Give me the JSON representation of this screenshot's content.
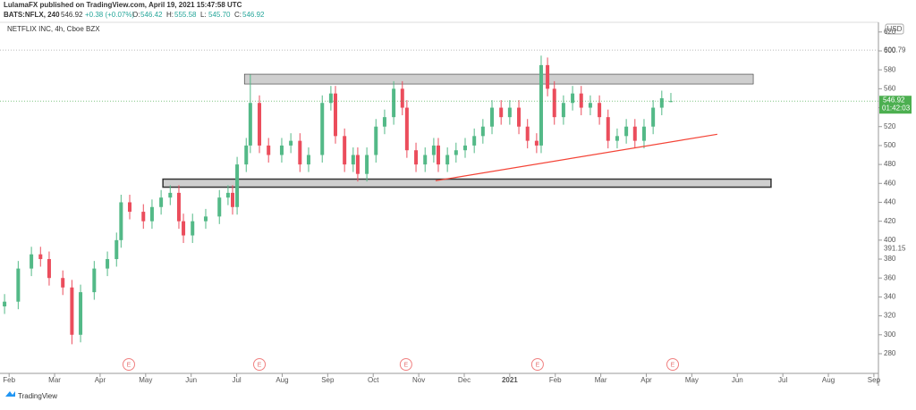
{
  "header": {
    "publisher": "LulamaFX published on TradingView.com, April 19, 2021 15:47:58 UTC",
    "symbol": "BATS:NFLX, 240",
    "last": "546.92",
    "change": "+0.38 (+0.07%)",
    "ohlc": [
      {
        "label": "O:",
        "value": "546.42"
      },
      {
        "label": "H:",
        "value": "555.58"
      },
      {
        "label": "L:",
        "value": "545.70"
      },
      {
        "label": "C:",
        "value": "546.92"
      }
    ]
  },
  "footer": {
    "brand": "TradingView"
  },
  "chart_data": {
    "type": "candlestick",
    "legend_title": "NETFLIX INC, 4h, Cboe BZX",
    "currency": "USD",
    "up_color": "#53b987",
    "down_color": "#eb4d5c",
    "x": [
      -0.1,
      0.2,
      0.49,
      0.69,
      0.88,
      1.18,
      1.38,
      1.57,
      1.87,
      2.16,
      2.36,
      2.46,
      2.65,
      2.95,
      3.14,
      3.34,
      3.54,
      3.73,
      3.83,
      4.03,
      4.32,
      4.62,
      4.81,
      4.91,
      5.01,
      5.21,
      5.3,
      5.5,
      5.7,
      5.99,
      6.19,
      6.39,
      6.58,
      6.88,
      7.07,
      7.17,
      7.37,
      7.56,
      7.66,
      7.86,
      8.06,
      8.25,
      8.45,
      8.64,
      8.74,
      8.94,
      9.14,
      9.33,
      9.43,
      9.63,
      9.82,
      10.02,
      10.22,
      10.41,
      10.61,
      10.81,
      11.0,
      11.2,
      11.39,
      11.59,
      11.69,
      11.83,
      11.98,
      12.18,
      12.38,
      12.57,
      12.77,
      12.97,
      13.16,
      13.36,
      13.56,
      13.75,
      13.95,
      14.15,
      14.34,
      14.54
    ],
    "open": [
      330,
      335,
      370,
      385,
      380,
      360,
      350,
      300,
      345,
      370,
      380,
      400,
      440,
      430,
      420,
      435,
      445,
      450,
      420,
      405,
      420,
      425,
      445,
      450,
      435,
      480,
      500,
      545,
      500,
      490,
      500,
      505,
      480,
      490,
      545,
      555,
      510,
      480,
      490,
      470,
      490,
      520,
      530,
      560,
      540,
      495,
      480,
      490,
      500,
      480,
      490,
      495,
      500,
      510,
      520,
      540,
      530,
      540,
      520,
      505,
      500,
      585,
      560,
      530,
      545,
      555,
      540,
      545,
      530,
      505,
      510,
      520,
      505,
      520,
      540,
      546.42
    ],
    "high": [
      343,
      378,
      393,
      393,
      388,
      368,
      358,
      353,
      378,
      388,
      408,
      448,
      448,
      438,
      443,
      453,
      458,
      458,
      428,
      428,
      433,
      453,
      458,
      458,
      488,
      508,
      575,
      553,
      508,
      508,
      513,
      513,
      498,
      553,
      563,
      563,
      518,
      498,
      498,
      498,
      528,
      538,
      568,
      568,
      548,
      503,
      498,
      508,
      508,
      498,
      503,
      508,
      518,
      528,
      548,
      548,
      548,
      548,
      528,
      513,
      595,
      593,
      568,
      553,
      563,
      563,
      553,
      553,
      538,
      518,
      528,
      528,
      528,
      548,
      558,
      555.58
    ],
    "low": [
      322,
      327,
      362,
      372,
      352,
      342,
      290,
      292,
      337,
      362,
      372,
      392,
      422,
      412,
      412,
      427,
      437,
      412,
      397,
      397,
      412,
      417,
      437,
      427,
      427,
      472,
      492,
      492,
      482,
      482,
      492,
      472,
      472,
      482,
      537,
      502,
      472,
      472,
      462,
      462,
      482,
      512,
      522,
      532,
      487,
      472,
      472,
      482,
      472,
      472,
      482,
      487,
      492,
      502,
      512,
      522,
      522,
      512,
      497,
      492,
      492,
      552,
      522,
      522,
      537,
      532,
      532,
      522,
      497,
      497,
      502,
      497,
      497,
      512,
      532,
      545.7
    ],
    "close": [
      335,
      370,
      385,
      380,
      360,
      350,
      300,
      345,
      370,
      380,
      400,
      440,
      430,
      420,
      435,
      445,
      450,
      420,
      405,
      420,
      425,
      445,
      450,
      435,
      480,
      500,
      545,
      500,
      490,
      500,
      505,
      480,
      490,
      545,
      555,
      510,
      480,
      490,
      470,
      490,
      520,
      530,
      560,
      540,
      495,
      480,
      490,
      500,
      480,
      490,
      495,
      500,
      510,
      520,
      540,
      530,
      540,
      520,
      505,
      500,
      585,
      560,
      530,
      545,
      555,
      540,
      545,
      530,
      505,
      510,
      520,
      505,
      520,
      540,
      550,
      546.92
    ],
    "xlim": [
      -0.2,
      19.1
    ],
    "xticks": [
      {
        "value": 0,
        "label": "Feb"
      },
      {
        "value": 1,
        "label": "Mar"
      },
      {
        "value": 2,
        "label": "Apr"
      },
      {
        "value": 3,
        "label": "May"
      },
      {
        "value": 4,
        "label": "Jun"
      },
      {
        "value": 5,
        "label": "Jul"
      },
      {
        "value": 6,
        "label": "Aug"
      },
      {
        "value": 7,
        "label": "Sep"
      },
      {
        "value": 8,
        "label": "Oct"
      },
      {
        "value": 9,
        "label": "Nov"
      },
      {
        "value": 10,
        "label": "Dec"
      },
      {
        "value": 11,
        "label": "2021"
      },
      {
        "value": 12,
        "label": "Feb"
      },
      {
        "value": 13,
        "label": "Mar"
      },
      {
        "value": 14,
        "label": "Apr"
      },
      {
        "value": 15,
        "label": "May"
      },
      {
        "value": 16,
        "label": "Jun"
      },
      {
        "value": 17,
        "label": "Jul"
      },
      {
        "value": 18,
        "label": "Aug"
      },
      {
        "value": 19,
        "label": "Sep"
      }
    ],
    "ylim": [
      259.2,
      630.2
    ],
    "yticks": [
      280,
      300,
      320,
      340,
      360,
      380,
      400,
      420,
      440,
      460,
      480,
      500,
      520,
      540,
      560,
      580,
      600,
      620
    ],
    "price_labels": [
      600.79,
      391.15
    ],
    "last_price": 546.92,
    "countdown": "01:42:03",
    "last_color": "#4caf50",
    "zones": [
      {
        "x": [
          5.17,
          16.35
        ],
        "y": [
          565,
          575.4
        ]
      },
      {
        "x": [
          3.38,
          16.74
        ],
        "y": [
          456,
          464.5
        ]
      }
    ],
    "trendline": {
      "color": "#f44336",
      "x": [
        9.37,
        15.56
      ],
      "y": [
        462.8,
        511.9
      ]
    },
    "events": {
      "label": "E",
      "x": [
        2.63,
        5.5,
        8.72,
        11.61,
        14.58
      ]
    }
  }
}
